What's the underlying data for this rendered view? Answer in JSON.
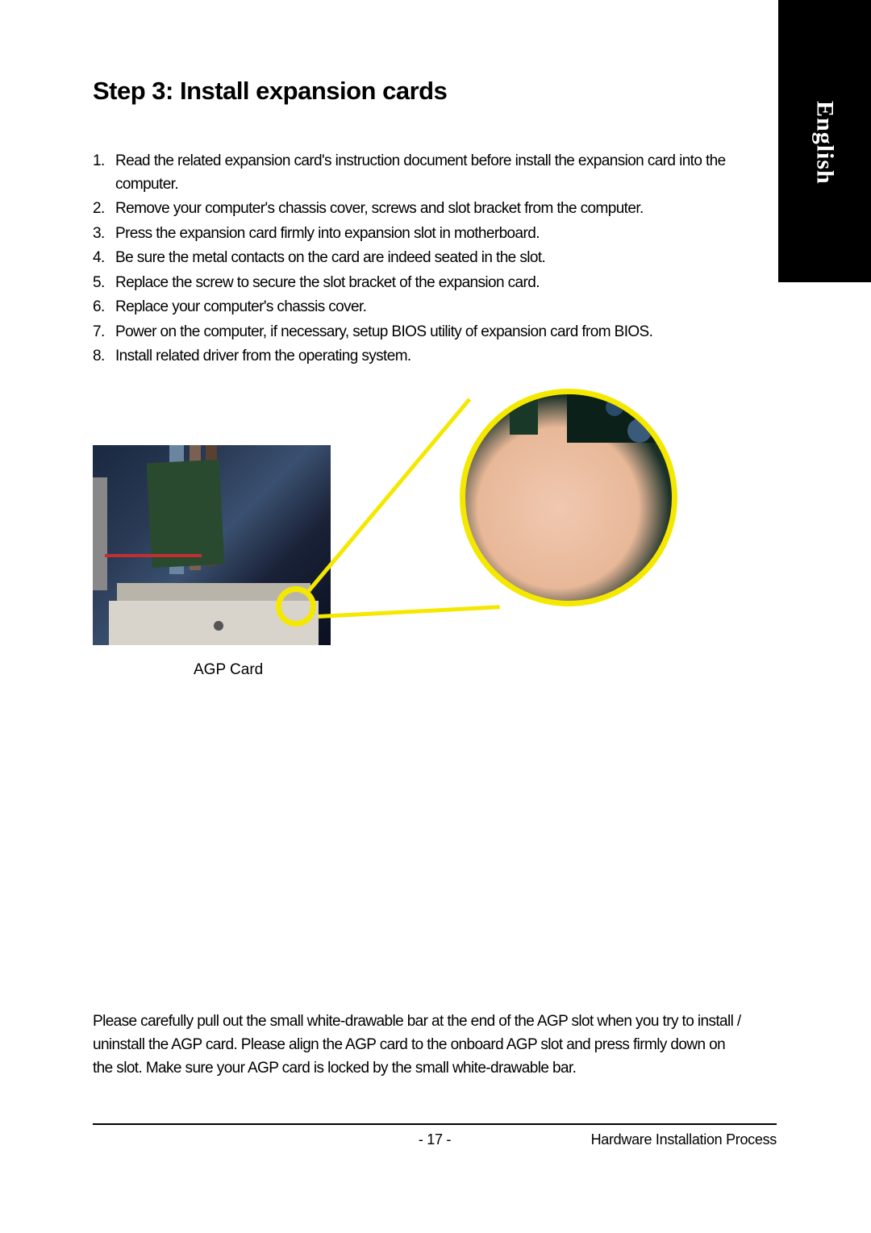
{
  "side_tab": {
    "label": "English",
    "bg_color": "#000000",
    "text_color": "#ffffff"
  },
  "title": "Step 3: Install expansion cards",
  "steps": [
    "Read the related expansion card's instruction document before install the expansion card into the computer.",
    "Remove your computer's chassis cover, screws and slot bracket from the computer.",
    "Press the expansion card firmly into expansion slot in motherboard.",
    "Be sure the metal contacts on the card are indeed seated in the slot.",
    "Replace the screw to secure the slot bracket of the expansion card.",
    "Replace your computer's chassis cover.",
    "Power on the computer, if necessary, setup BIOS utility of expansion card from BIOS.",
    "Install related driver from the operating system."
  ],
  "figure": {
    "caption": "AGP Card",
    "highlight_color": "#f5e800",
    "ring_border_width": 7
  },
  "bottom_paragraph": "Please carefully pull out the small white-drawable bar at the end of the AGP slot when you try to install / uninstall the AGP card. Please align the AGP card to the onboard AGP slot and press firmly down on the slot. Make sure your AGP card is locked by the small white-drawable bar.",
  "footer": {
    "page_number": "- 17 -",
    "section": "Hardware Installation Process"
  }
}
